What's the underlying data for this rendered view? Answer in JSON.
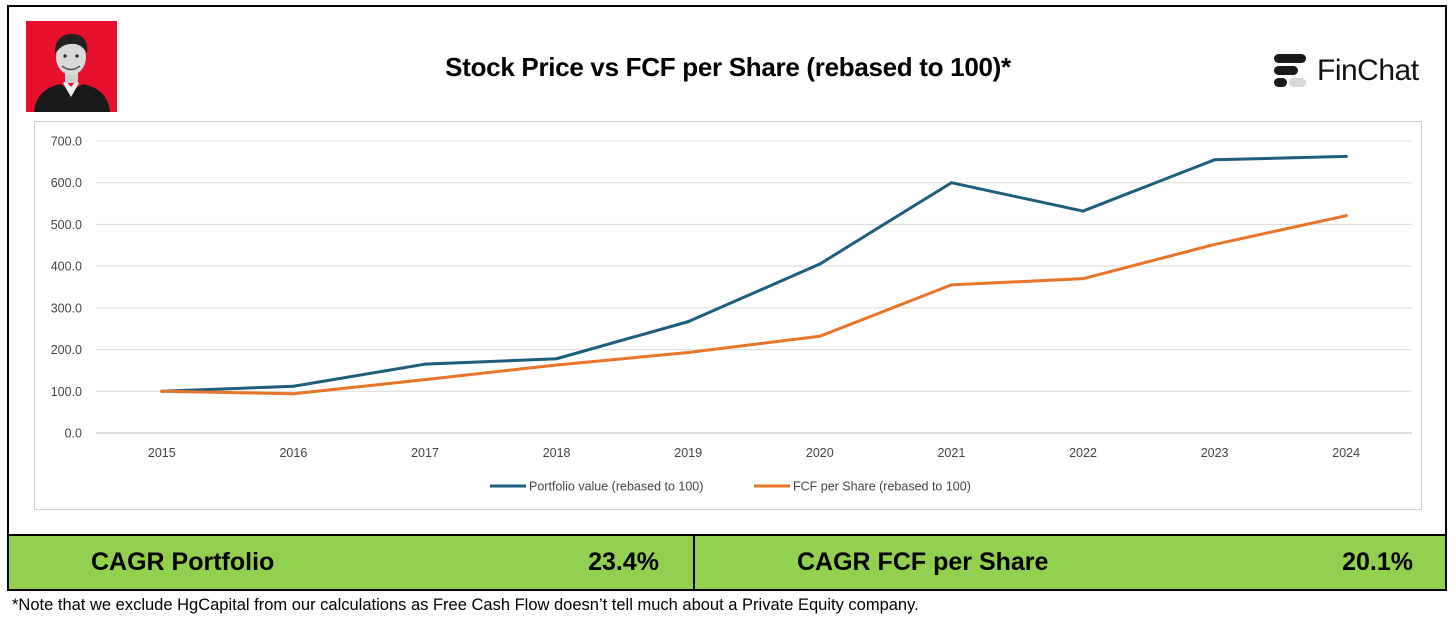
{
  "header": {
    "title": "Stock Price vs FCF per Share (rebased to 100)*",
    "brand_name": "FinChat"
  },
  "chart_data": {
    "type": "line",
    "x": [
      "2015",
      "2016",
      "2017",
      "2018",
      "2019",
      "2020",
      "2021",
      "2022",
      "2023",
      "2024"
    ],
    "yticks": [
      "0.0",
      "100.0",
      "200.0",
      "300.0",
      "400.0",
      "500.0",
      "600.0",
      "700.0"
    ],
    "ylim": [
      0,
      700
    ],
    "grid": true,
    "legend_position": "bottom",
    "series": [
      {
        "name": "Portfolio value (rebased to 100)",
        "color": "#1d5d7e",
        "values": [
          100,
          112,
          165,
          178,
          267,
          405,
          600,
          532,
          655,
          663
        ]
      },
      {
        "name": "FCF per Share (rebased to 100)",
        "color": "#e8742a",
        "values": [
          100,
          94,
          128,
          163,
          193,
          232,
          355,
          370,
          452,
          521
        ]
      }
    ]
  },
  "summary": {
    "left_label": "CAGR Portfolio",
    "left_value": "23.4%",
    "right_label": "CAGR FCF per Share",
    "right_value": "20.1%",
    "bar_color": "#92d050"
  },
  "footnote": "*Note that we exclude HgCapital from our calculations as Free Cash Flow doesn’t tell much about a Private Equity company."
}
